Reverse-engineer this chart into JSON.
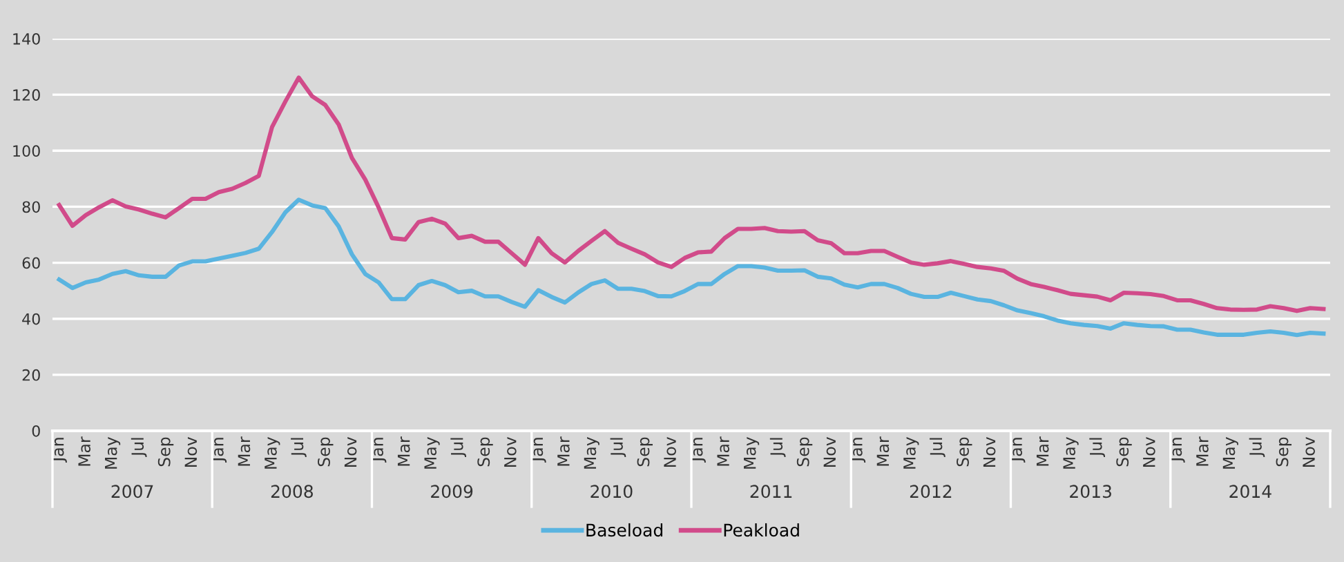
{
  "chart_data": {
    "type": "line",
    "categories": [
      "Jan",
      null,
      "Mar",
      null,
      "May",
      null,
      "Jul",
      null,
      "Sep",
      null,
      "Nov",
      null,
      "Jan",
      null,
      "Mar",
      null,
      "May",
      null,
      "Jul",
      null,
      "Sep",
      null,
      "Nov",
      null,
      "Jan",
      null,
      "Mar",
      null,
      "May",
      null,
      "Jul",
      null,
      "Sep",
      null,
      "Nov",
      null,
      "Jan",
      null,
      "Mar",
      null,
      "May",
      null,
      "Jul",
      null,
      "Sep",
      null,
      "Nov",
      null,
      "Jan",
      null,
      "Mar",
      null,
      "May",
      null,
      "Jul",
      null,
      "Sep",
      null,
      "Nov",
      null,
      "Jan",
      null,
      "Mar",
      null,
      "May",
      null,
      "Jul",
      null,
      "Sep",
      null,
      "Nov",
      null,
      "Jan",
      null,
      "Mar",
      null,
      "May",
      null,
      "Jul",
      null,
      "Sep",
      null,
      "Nov",
      null,
      "Jan",
      null,
      "Mar",
      null,
      "May",
      null,
      "Jul",
      null,
      "Sep",
      null,
      "Nov",
      null
    ],
    "annotations": [
      "2007",
      "2008",
      "2009",
      "2010",
      "2011",
      "2012",
      "2013",
      "2014"
    ],
    "series": [
      {
        "name": "Baseload",
        "color": "#5ab4e0",
        "values": [
          54,
          51,
          53,
          54,
          56,
          57,
          55.5,
          55,
          55,
          59,
          60.5,
          60.5,
          61.5,
          62.5,
          63.5,
          65,
          71,
          78,
          82.5,
          80.5,
          79.5,
          73,
          63,
          56,
          53,
          47,
          47,
          52,
          53.5,
          52,
          49.5,
          50,
          48,
          48,
          46,
          44.3,
          50.2,
          47.8,
          45.8,
          49.4,
          52.4,
          53.7,
          50.7,
          50.7,
          49.9,
          48.1,
          48,
          49.9,
          52.4,
          52.4,
          56,
          58.8,
          58.8,
          58.3,
          57.2,
          57.2,
          57.3,
          55,
          54.4,
          52.2,
          51.2,
          52.4,
          52.4,
          51,
          48.9,
          47.8,
          47.8,
          49.3,
          48.1,
          46.9,
          46.3,
          44.8,
          43,
          42,
          40.9,
          39.4,
          38.4,
          37.8,
          37.4,
          36.5,
          38.4,
          37.8,
          37.4,
          37.3,
          36.1,
          36.1,
          35.1,
          34.3,
          34.3,
          34.3,
          35,
          35.5,
          35,
          34.2,
          35,
          34.7
        ]
      },
      {
        "name": "Peakload",
        "color": "#d14b8a",
        "values": [
          80.6,
          73.2,
          77,
          79.8,
          82.3,
          80.1,
          79,
          77.5,
          76.2,
          79.5,
          82.8,
          82.8,
          85.2,
          86.4,
          88.5,
          91,
          108.5,
          117.6,
          126.1,
          119.5,
          116.3,
          109.4,
          97.4,
          89.7,
          79.8,
          68.8,
          68.3,
          74.5,
          75.7,
          74,
          68.8,
          69.6,
          67.5,
          67.5,
          63.4,
          59.3,
          68.8,
          63.4,
          60.1,
          64.2,
          67.8,
          71.3,
          67.1,
          65,
          63,
          60.1,
          58.5,
          61.7,
          63.7,
          64,
          68.8,
          72.1,
          72.1,
          72.4,
          71.3,
          71.1,
          71.3,
          68,
          67,
          63.4,
          63.4,
          64.2,
          64.2,
          62.1,
          60.1,
          59.3,
          59.8,
          60.6,
          59.6,
          58.5,
          58,
          57.1,
          54.3,
          52.4,
          51.4,
          50.2,
          48.9,
          48.4,
          47.9,
          46.6,
          49.3,
          49.1,
          48.8,
          48.1,
          46.6,
          46.6,
          45.3,
          43.8,
          43.3,
          43.2,
          43.3,
          44.5,
          43.8,
          42.8,
          43.8,
          43.5
        ]
      }
    ],
    "ylim": [
      0,
      140
    ],
    "yticks": [
      0,
      20,
      40,
      60,
      80,
      100,
      120,
      140
    ],
    "grid": "y",
    "legend": "bottom",
    "marker": "none",
    "line_style": "solid"
  }
}
